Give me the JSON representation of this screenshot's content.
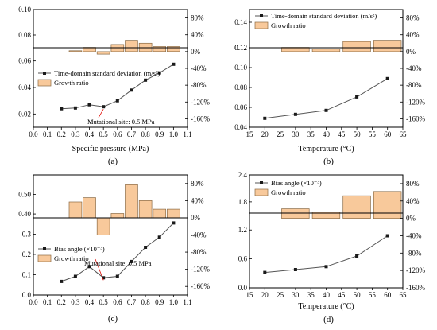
{
  "colors": {
    "bar_fill": "#f8c99b",
    "bar_stroke": "#8a6a44",
    "line": "#555555",
    "marker": "#1a1a1a",
    "annotation": "#e3120b"
  },
  "chart_data": [
    {
      "id": "a",
      "panel_label": "(a)",
      "type": "line+bar",
      "xlabel": "Specific pressure (MPa)",
      "xlim": [
        0.0,
        1.1
      ],
      "xticks": [
        0.0,
        0.1,
        0.2,
        0.3,
        0.4,
        0.5,
        0.6,
        0.7,
        0.8,
        0.9,
        1.0,
        1.1
      ],
      "x": [
        0.2,
        0.3,
        0.4,
        0.5,
        0.6,
        0.7,
        0.8,
        0.9,
        1.0
      ],
      "line_series": {
        "name": "Time-domain standard deviation (m/s²)",
        "ylim": [
          0.01,
          0.07
        ],
        "yticks": [
          0.02,
          0.04,
          0.06
        ],
        "values": [
          0.024,
          0.0245,
          0.027,
          0.0255,
          0.03,
          0.038,
          0.0455,
          0.051,
          0.0575
        ]
      },
      "upper_axis": {
        "ylim": [
          0.07,
          0.1
        ],
        "yticks": [
          0.08,
          0.1
        ]
      },
      "bar_series": {
        "name": "Growth ratio",
        "x": [
          0.3,
          0.4,
          0.5,
          0.6,
          0.7,
          0.8,
          0.9,
          1.0
        ],
        "values": [
          2,
          10,
          -6,
          17,
          27,
          20,
          12,
          12
        ]
      },
      "right_axis": {
        "ylim": [
          -180,
          100
        ],
        "yticks": [
          -160,
          -120,
          -80,
          -40,
          0,
          40,
          80
        ],
        "ticklabels": [
          "-160%",
          "-120%",
          "-80%",
          "-40%",
          "0%",
          "40%",
          "80%"
        ]
      },
      "annotation": "Mutational site: 0.5 MPa",
      "legend": "center-left"
    },
    {
      "id": "b",
      "panel_label": "(b)",
      "type": "line+bar",
      "xlabel": "Temperature (°C)",
      "xlim": [
        15,
        65
      ],
      "xticks": [
        15,
        20,
        25,
        30,
        35,
        40,
        45,
        50,
        55,
        60,
        65
      ],
      "x": [
        20,
        30,
        40,
        50,
        60
      ],
      "line_series": {
        "name": "Time-domain standard deviation (m/s²)",
        "ylim": [
          0.04,
          0.12
        ],
        "yticks": [
          0.04,
          0.06,
          0.08,
          0.1,
          0.12
        ],
        "values": [
          0.049,
          0.053,
          0.057,
          0.0705,
          0.089
        ]
      },
      "upper_axis": {
        "ylim": [
          0.12,
          0.15
        ],
        "yticks": [
          0.12,
          0.14
        ]
      },
      "bar_series": {
        "name": "Growth ratio",
        "x": [
          30,
          40,
          50,
          60
        ],
        "values": [
          10,
          6,
          24,
          27
        ]
      },
      "right_axis": {
        "ylim": [
          -180,
          100
        ],
        "yticks": [
          -160,
          -120,
          -80,
          -40,
          0,
          40,
          80
        ],
        "ticklabels": [
          "-160%",
          "-120%",
          "-80%",
          "-40%",
          "0%",
          "40%",
          "80%"
        ]
      },
      "legend": "top-left"
    },
    {
      "id": "c",
      "panel_label": "(c)",
      "type": "line+bar",
      "xlabel": "",
      "xlim": [
        0.0,
        1.1
      ],
      "xticks": [
        0.0,
        0.1,
        0.2,
        0.3,
        0.4,
        0.5,
        0.6,
        0.7,
        0.8,
        0.9,
        1.0,
        1.1
      ],
      "x": [
        0.2,
        0.3,
        0.4,
        0.5,
        0.6,
        0.7,
        0.8,
        0.9,
        1.0
      ],
      "line_series": {
        "name": "Bias angle (×10⁻³)",
        "ylim": [
          0.0,
          0.38
        ],
        "yticks": [
          0.0,
          0.1,
          0.2,
          0.3
        ],
        "values": [
          0.067,
          0.092,
          0.14,
          0.085,
          0.092,
          0.165,
          0.235,
          0.285,
          0.355
        ]
      },
      "upper_axis": {
        "ylim": [
          0.38,
          0.6
        ],
        "yticks": [
          0.4,
          0.5
        ]
      },
      "bar_series": {
        "name": "Growth ratio",
        "x": [
          0.3,
          0.4,
          0.5,
          0.6,
          0.7,
          0.8,
          0.9,
          1.0
        ],
        "values": [
          37,
          47,
          -40,
          10,
          77,
          40,
          20,
          20
        ]
      },
      "right_axis": {
        "ylim": [
          -180,
          100
        ],
        "yticks": [
          -160,
          -120,
          -80,
          -40,
          0,
          40,
          80
        ],
        "ticklabels": [
          "-160%",
          "-120%",
          "-80%",
          "-40%",
          "0%",
          "40%",
          "80%"
        ]
      },
      "annotation": "Mutational site: 0.5 MPa",
      "legend": "center-left"
    },
    {
      "id": "d",
      "panel_label": "(d)",
      "type": "line+bar",
      "xlabel": "Temperature (°C)",
      "xlim": [
        15,
        65
      ],
      "xticks": [
        15,
        20,
        25,
        30,
        35,
        40,
        45,
        50,
        55,
        60,
        65
      ],
      "x": [
        20,
        30,
        40,
        50,
        60
      ],
      "line_series": {
        "name": "Bias angle (×10⁻³)",
        "ylim": [
          0.0,
          1.55
        ],
        "yticks": [
          0.0,
          0.6,
          1.2
        ],
        "values": [
          0.32,
          0.38,
          0.44,
          0.66,
          1.08
        ]
      },
      "upper_axis": {
        "ylim": [
          1.55,
          2.4
        ],
        "yticks": [
          1.8,
          2.4
        ]
      },
      "bar_series": {
        "name": "Growth ratio",
        "x": [
          30,
          40,
          50,
          60
        ],
        "values": [
          22,
          15,
          52,
          62
        ]
      },
      "right_axis": {
        "ylim": [
          -160,
          100
        ],
        "yticks": [
          -160,
          -120,
          -80,
          -40,
          0,
          40,
          80
        ],
        "ticklabels": [
          "-160%",
          "-120%",
          "-80%",
          "-40%",
          "0%",
          "40%",
          "80%"
        ]
      },
      "legend": "top-left"
    }
  ]
}
